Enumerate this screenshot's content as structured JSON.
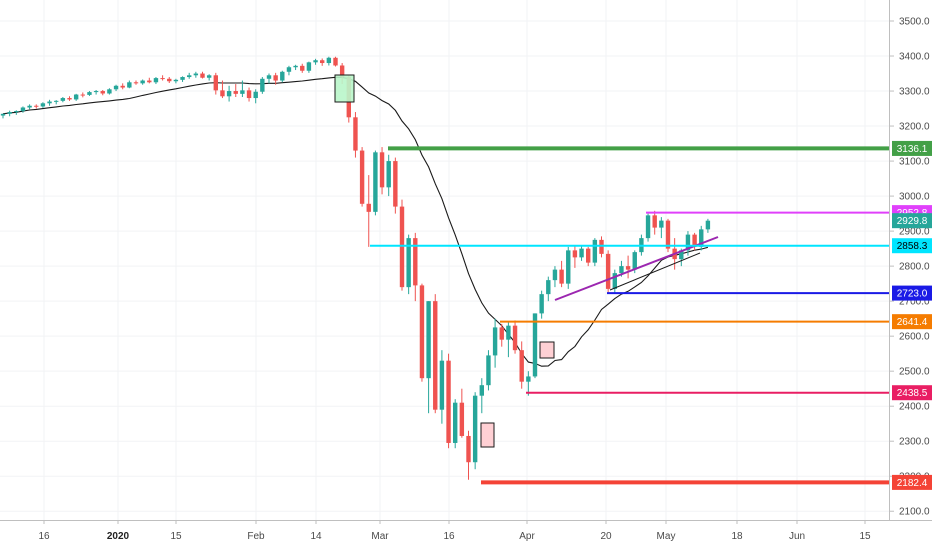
{
  "chart_data": {
    "type": "candlestick",
    "y_axis": {
      "ylim": [
        2075,
        3560
      ],
      "ticks": [
        "3500.0",
        "3400.0",
        "3300.0",
        "3200.0",
        "3100.0",
        "3000.0",
        "2900.0",
        "2800.0",
        "2700.0",
        "2600.0",
        "2500.0",
        "2400.0",
        "2300.0",
        "2200.0",
        "2100.0"
      ]
    },
    "x_axis": {
      "ticks": [
        {
          "label": "16",
          "bold": false
        },
        {
          "label": "2020",
          "bold": true
        },
        {
          "label": "15",
          "bold": false
        },
        {
          "label": "Feb",
          "bold": false
        },
        {
          "label": "14",
          "bold": false
        },
        {
          "label": "Mar",
          "bold": false
        },
        {
          "label": "16",
          "bold": false
        },
        {
          "label": "Apr",
          "bold": false
        },
        {
          "label": "20",
          "bold": false
        },
        {
          "label": "May",
          "bold": false
        },
        {
          "label": "18",
          "bold": false
        },
        {
          "label": "Jun",
          "bold": false
        },
        {
          "label": "15",
          "bold": false
        }
      ]
    },
    "price_levels": [
      {
        "label": "3136.1",
        "value": 3136.1,
        "color": "#43a047"
      },
      {
        "label": "2952.8",
        "value": 2952.8,
        "color": "#e040fb"
      },
      {
        "label": "2929.8",
        "value": 2929.8,
        "color": "#26a69a"
      },
      {
        "label": "2858.3",
        "value": 2858.3,
        "color": "#00e5ff"
      },
      {
        "label": "2723.0",
        "value": 2723.0,
        "color": "#1a1ae6"
      },
      {
        "label": "2641.4",
        "value": 2641.4,
        "color": "#f57c00"
      },
      {
        "label": "2438.5",
        "value": 2438.5,
        "color": "#e91e63"
      },
      {
        "label": "2182.4",
        "value": 2182.4,
        "color": "#f44336"
      }
    ],
    "candles": [
      [
        3230,
        3235,
        3222,
        3235
      ],
      [
        3235,
        3244,
        3228,
        3240
      ],
      [
        3240,
        3245,
        3232,
        3243
      ],
      [
        3243,
        3256,
        3238,
        3253
      ],
      [
        3253,
        3262,
        3248,
        3258
      ],
      [
        3258,
        3262,
        3250,
        3256
      ],
      [
        3256,
        3268,
        3252,
        3265
      ],
      [
        3265,
        3275,
        3258,
        3270
      ],
      [
        3270,
        3274,
        3262,
        3272
      ],
      [
        3272,
        3283,
        3268,
        3280
      ],
      [
        3280,
        3285,
        3272,
        3276
      ],
      [
        3276,
        3292,
        3272,
        3290
      ],
      [
        3290,
        3296,
        3282,
        3289
      ],
      [
        3289,
        3300,
        3286,
        3297
      ],
      [
        3297,
        3303,
        3290,
        3300
      ],
      [
        3300,
        3303,
        3288,
        3293
      ],
      [
        3293,
        3308,
        3290,
        3305
      ],
      [
        3305,
        3318,
        3300,
        3315
      ],
      [
        3315,
        3322,
        3305,
        3310
      ],
      [
        3310,
        3330,
        3308,
        3325
      ],
      [
        3325,
        3330,
        3318,
        3322
      ],
      [
        3322,
        3333,
        3318,
        3330
      ],
      [
        3330,
        3338,
        3322,
        3325
      ],
      [
        3325,
        3340,
        3320,
        3337
      ],
      [
        3337,
        3345,
        3330,
        3335
      ],
      [
        3335,
        3340,
        3323,
        3328
      ],
      [
        3328,
        3335,
        3322,
        3332
      ],
      [
        3332,
        3342,
        3326,
        3340
      ],
      [
        3340,
        3352,
        3335,
        3345
      ],
      [
        3345,
        3355,
        3338,
        3350
      ],
      [
        3350,
        3355,
        3336,
        3338
      ],
      [
        3338,
        3348,
        3330,
        3345
      ],
      [
        3345,
        3352,
        3290,
        3302
      ],
      [
        3302,
        3330,
        3280,
        3285
      ],
      [
        3285,
        3315,
        3270,
        3300
      ],
      [
        3300,
        3320,
        3283,
        3292
      ],
      [
        3292,
        3330,
        3283,
        3302
      ],
      [
        3302,
        3310,
        3270,
        3280
      ],
      [
        3280,
        3305,
        3265,
        3298
      ],
      [
        3298,
        3340,
        3292,
        3335
      ],
      [
        3335,
        3350,
        3322,
        3345
      ],
      [
        3345,
        3352,
        3318,
        3330
      ],
      [
        3330,
        3358,
        3325,
        3355
      ],
      [
        3355,
        3372,
        3345,
        3368
      ],
      [
        3368,
        3375,
        3360,
        3372
      ],
      [
        3372,
        3378,
        3352,
        3358
      ],
      [
        3358,
        3384,
        3352,
        3382
      ],
      [
        3382,
        3392,
        3375,
        3388
      ],
      [
        3388,
        3393,
        3372,
        3380
      ],
      [
        3380,
        3398,
        3373,
        3395
      ],
      [
        3395,
        3398,
        3370,
        3373
      ],
      [
        3373,
        3380,
        3320,
        3340
      ],
      [
        3340,
        3345,
        3210,
        3225
      ],
      [
        3225,
        3240,
        3110,
        3130
      ],
      [
        3130,
        3140,
        2970,
        2978
      ],
      [
        2978,
        3060,
        2855,
        2955
      ],
      [
        2955,
        3130,
        2945,
        3125
      ],
      [
        3125,
        3140,
        3005,
        3025
      ],
      [
        3025,
        3118,
        3000,
        3100
      ],
      [
        3100,
        3110,
        2950,
        2970
      ],
      [
        2970,
        2990,
        2730,
        2740
      ],
      [
        2740,
        2890,
        2720,
        2880
      ],
      [
        2880,
        2895,
        2700,
        2745
      ],
      [
        2745,
        2750,
        2470,
        2480
      ],
      [
        2480,
        2700,
        2380,
        2700
      ],
      [
        2700,
        2720,
        2380,
        2390
      ],
      [
        2390,
        2560,
        2350,
        2530
      ],
      [
        2530,
        2550,
        2280,
        2295
      ],
      [
        2295,
        2420,
        2280,
        2410
      ],
      [
        2410,
        2450,
        2310,
        2315
      ],
      [
        2315,
        2330,
        2190,
        2240
      ],
      [
        2240,
        2440,
        2220,
        2430
      ],
      [
        2430,
        2480,
        2380,
        2460
      ],
      [
        2460,
        2560,
        2445,
        2545
      ],
      [
        2545,
        2650,
        2510,
        2625
      ],
      [
        2625,
        2635,
        2570,
        2590
      ],
      [
        2590,
        2640,
        2540,
        2630
      ],
      [
        2630,
        2645,
        2550,
        2560
      ],
      [
        2560,
        2585,
        2450,
        2470
      ],
      [
        2470,
        2500,
        2430,
        2485
      ],
      [
        2485,
        2665,
        2480,
        2665
      ],
      [
        2665,
        2730,
        2650,
        2720
      ],
      [
        2720,
        2770,
        2700,
        2760
      ],
      [
        2760,
        2800,
        2740,
        2790
      ],
      [
        2790,
        2815,
        2740,
        2750
      ],
      [
        2750,
        2855,
        2735,
        2845
      ],
      [
        2845,
        2860,
        2795,
        2825
      ],
      [
        2825,
        2860,
        2815,
        2850
      ],
      [
        2850,
        2855,
        2800,
        2810
      ],
      [
        2810,
        2880,
        2800,
        2875
      ],
      [
        2875,
        2885,
        2825,
        2835
      ],
      [
        2835,
        2845,
        2725,
        2735
      ],
      [
        2735,
        2790,
        2725,
        2780
      ],
      [
        2780,
        2815,
        2770,
        2800
      ],
      [
        2800,
        2830,
        2765,
        2790
      ],
      [
        2790,
        2845,
        2780,
        2840
      ],
      [
        2840,
        2890,
        2830,
        2880
      ],
      [
        2880,
        2950,
        2870,
        2945
      ],
      [
        2945,
        2958,
        2890,
        2910
      ],
      [
        2910,
        2940,
        2880,
        2930
      ],
      [
        2930,
        2935,
        2840,
        2850
      ],
      [
        2850,
        2880,
        2790,
        2820
      ],
      [
        2820,
        2850,
        2800,
        2845
      ],
      [
        2845,
        2900,
        2830,
        2890
      ],
      [
        2890,
        2895,
        2845,
        2855
      ],
      [
        2855,
        2915,
        2845,
        2905
      ],
      [
        2905,
        2935,
        2895,
        2929.8
      ]
    ]
  }
}
